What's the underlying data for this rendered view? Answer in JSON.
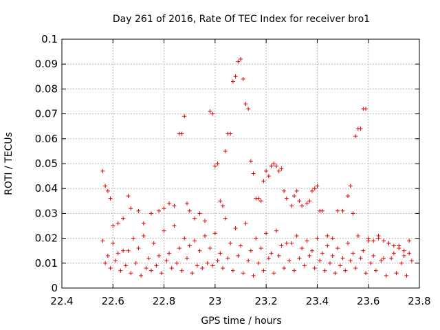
{
  "chart_data": {
    "type": "scatter",
    "title": "Day 261 of 2016, Rate Of TEC Index for receiver bro1",
    "xlabel": "GPS time / hours",
    "ylabel": "ROTI / TECUs",
    "xlim": [
      22.4,
      23.8
    ],
    "ylim": [
      0,
      0.1
    ],
    "grid": true,
    "marker": "+",
    "marker_color": "#e00000",
    "x_ticks": [
      22.4,
      22.6,
      22.8,
      23,
      23.2,
      23.4,
      23.6,
      23.8
    ],
    "x_tick_labels": [
      "22.4",
      "22.6",
      "22.8",
      "23",
      "23.2",
      "23.4",
      "23.6",
      "23.8"
    ],
    "y_ticks": [
      0,
      0.01,
      0.02,
      0.03,
      0.04,
      0.05,
      0.06,
      0.07,
      0.08,
      0.09,
      0.1
    ],
    "y_tick_labels": [
      "0",
      "0.01",
      "0.02",
      "0.03",
      "0.04",
      "0.05",
      "0.06",
      "0.07",
      "0.08",
      "0.09",
      "0.1"
    ],
    "series": [
      {
        "name": "ROTI",
        "x": [
          22.56,
          22.57,
          22.58,
          22.59,
          22.6,
          22.62,
          22.64,
          22.66,
          22.67,
          22.7,
          22.72,
          22.75,
          22.78,
          22.8,
          22.82,
          22.84,
          22.86,
          22.87,
          22.88,
          22.89,
          22.9,
          22.92,
          22.94,
          22.96,
          22.98,
          22.99,
          23.0,
          23.01,
          23.02,
          23.03,
          23.04,
          23.05,
          23.06,
          23.07,
          23.08,
          23.09,
          23.1,
          23.11,
          23.12,
          23.13,
          23.14,
          23.15,
          23.16,
          23.17,
          23.18,
          23.19,
          23.2,
          23.21,
          23.22,
          23.23,
          23.24,
          23.25,
          23.26,
          23.27,
          23.28,
          23.3,
          23.31,
          23.32,
          23.33,
          23.34,
          23.36,
          23.37,
          23.38,
          23.39,
          23.4,
          23.41,
          23.42,
          23.44,
          23.46,
          23.48,
          23.5,
          23.52,
          23.53,
          23.54,
          23.55,
          23.56,
          23.57,
          23.58,
          23.59,
          23.6,
          23.62,
          23.64,
          23.66,
          23.68,
          23.7,
          23.72,
          23.74,
          23.76,
          22.56,
          22.6,
          22.64,
          22.68,
          22.72,
          22.76,
          22.8,
          22.84,
          22.88,
          22.92,
          22.96,
          23.0,
          23.04,
          23.08,
          23.12,
          23.16,
          23.2,
          23.24,
          23.28,
          23.32,
          23.36,
          23.4,
          23.44,
          23.48,
          23.52,
          23.56,
          23.6,
          23.64,
          23.68,
          23.72,
          23.76,
          22.58,
          22.62,
          22.66,
          22.7,
          22.74,
          22.78,
          22.82,
          22.86,
          22.9,
          22.94,
          22.98,
          23.02,
          23.06,
          23.1,
          23.14,
          23.18,
          23.22,
          23.26,
          23.3,
          23.34,
          23.38,
          23.42,
          23.46,
          23.5,
          23.54,
          23.58,
          23.62,
          23.66,
          23.7,
          23.74,
          22.57,
          22.61,
          22.65,
          22.69,
          22.73,
          22.77,
          22.81,
          22.85,
          22.89,
          22.93,
          22.97,
          23.01,
          23.05,
          23.09,
          23.13,
          23.17,
          23.21,
          23.25,
          23.29,
          23.33,
          23.37,
          23.41,
          23.45,
          23.49,
          23.53,
          23.57,
          23.61,
          23.65,
          23.69,
          23.73,
          23.77,
          22.59,
          22.63,
          22.67,
          22.71,
          22.75,
          22.79,
          22.83,
          22.87,
          22.91,
          22.95,
          22.99,
          23.03,
          23.07,
          23.11,
          23.15,
          23.19,
          23.23,
          23.27,
          23.31,
          23.35,
          23.39,
          23.43,
          23.47,
          23.51,
          23.55,
          23.59,
          23.63,
          23.67,
          23.71,
          23.75
        ],
        "y": [
          0.047,
          0.041,
          0.039,
          0.036,
          0.025,
          0.026,
          0.028,
          0.037,
          0.032,
          0.031,
          0.026,
          0.03,
          0.031,
          0.032,
          0.034,
          0.033,
          0.062,
          0.062,
          0.069,
          0.034,
          0.031,
          0.028,
          0.03,
          0.027,
          0.071,
          0.07,
          0.049,
          0.05,
          0.035,
          0.033,
          0.055,
          0.062,
          0.062,
          0.083,
          0.085,
          0.091,
          0.092,
          0.084,
          0.074,
          0.072,
          0.051,
          0.046,
          0.036,
          0.036,
          0.035,
          0.043,
          0.047,
          0.045,
          0.049,
          0.05,
          0.049,
          0.047,
          0.048,
          0.039,
          0.036,
          0.033,
          0.037,
          0.039,
          0.035,
          0.033,
          0.034,
          0.035,
          0.039,
          0.04,
          0.041,
          0.031,
          0.031,
          0.021,
          0.02,
          0.031,
          0.031,
          0.037,
          0.041,
          0.03,
          0.061,
          0.064,
          0.064,
          0.072,
          0.072,
          0.02,
          0.019,
          0.021,
          0.019,
          0.018,
          0.017,
          0.016,
          0.015,
          0.014,
          0.019,
          0.018,
          0.015,
          0.02,
          0.021,
          0.018,
          0.023,
          0.025,
          0.02,
          0.019,
          0.021,
          0.022,
          0.028,
          0.024,
          0.026,
          0.02,
          0.022,
          0.023,
          0.018,
          0.021,
          0.019,
          0.02,
          0.017,
          0.016,
          0.018,
          0.021,
          0.019,
          0.02,
          0.018,
          0.017,
          0.019,
          0.013,
          0.014,
          0.015,
          0.016,
          0.012,
          0.013,
          0.014,
          0.016,
          0.017,
          0.015,
          0.016,
          0.014,
          0.018,
          0.017,
          0.015,
          0.016,
          0.014,
          0.017,
          0.018,
          0.016,
          0.015,
          0.014,
          0.013,
          0.012,
          0.014,
          0.015,
          0.013,
          0.012,
          0.014,
          0.013,
          0.01,
          0.011,
          0.009,
          0.01,
          0.008,
          0.009,
          0.011,
          0.01,
          0.012,
          0.009,
          0.01,
          0.011,
          0.012,
          0.013,
          0.011,
          0.01,
          0.012,
          0.013,
          0.011,
          0.012,
          0.013,
          0.011,
          0.01,
          0.009,
          0.011,
          0.012,
          0.01,
          0.011,
          0.012,
          0.01,
          0.011,
          0.008,
          0.007,
          0.006,
          0.005,
          0.007,
          0.006,
          0.008,
          0.007,
          0.006,
          0.008,
          0.009,
          0.008,
          0.007,
          0.006,
          0.005,
          0.007,
          0.006,
          0.008,
          0.007,
          0.009,
          0.008,
          0.007,
          0.006,
          0.007,
          0.008,
          0.006,
          0.007,
          0.005,
          0.006,
          0.005
        ]
      }
    ]
  }
}
